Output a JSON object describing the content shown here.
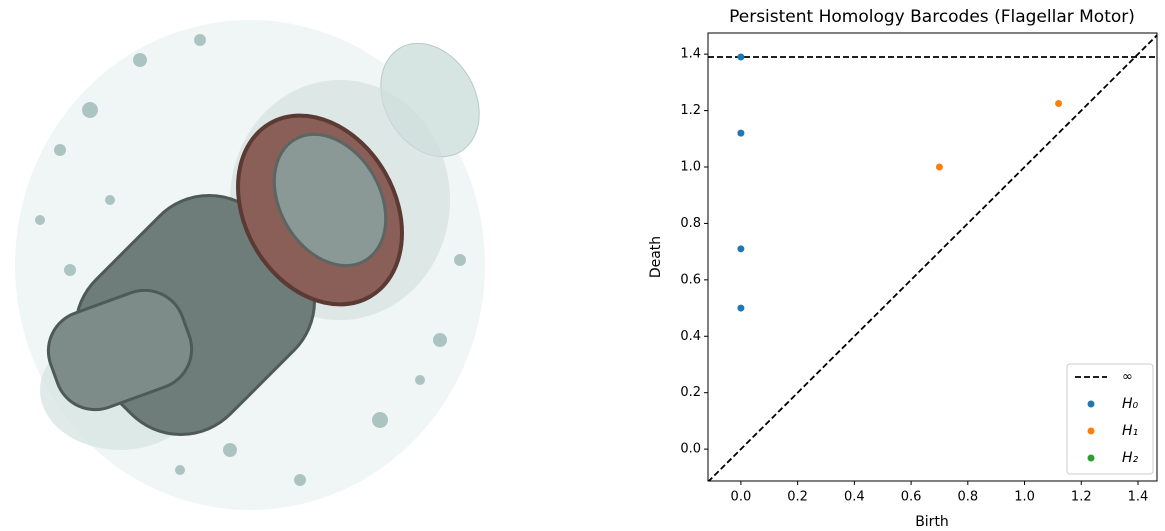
{
  "chart_data": {
    "type": "scatter",
    "title": "Persistent Homology Barcodes (Flagellar Motor)",
    "xlabel": "Birth",
    "ylabel": "Death",
    "xlim": [
      -0.116,
      1.467
    ],
    "ylim": [
      -0.113,
      1.475
    ],
    "xticks": [
      {
        "value": 0,
        "label": "0.0"
      },
      0.2,
      0.4,
      0.6,
      0.8,
      {
        "value": 1,
        "label": "1.0"
      },
      1.2,
      1.4
    ],
    "yticks": [
      {
        "value": 0,
        "label": "0.0"
      },
      0.2,
      0.4,
      0.6,
      0.8,
      {
        "value": 1,
        "label": "1.0"
      },
      1.2,
      1.4
    ],
    "infinity": {
      "name": "∞",
      "value": 1.39,
      "color": "#000000"
    },
    "diagonal": true,
    "legend": "lower right",
    "series": [
      {
        "name": "H₀",
        "color": "#1f77b4",
        "x": [
          0,
          0,
          0,
          0
        ],
        "values": [
          1.39,
          1.12,
          0.71,
          0.5
        ]
      },
      {
        "name": "H₁",
        "color": "#ff7f0e",
        "x": [
          0.7,
          1.12
        ],
        "values": [
          1.0,
          1.225
        ]
      },
      {
        "name": "H₂",
        "color": "#2ca02c",
        "x": [],
        "values": []
      }
    ]
  }
}
